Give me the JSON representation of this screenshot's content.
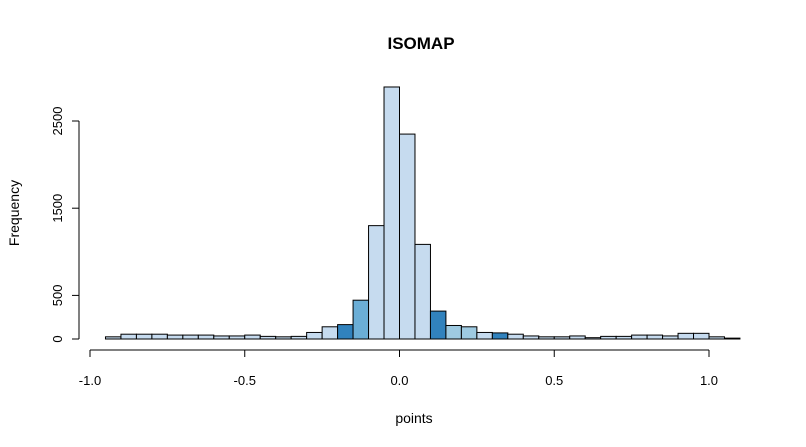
{
  "chart_data": {
    "type": "bar",
    "title": "ISOMAP",
    "xlabel": "points",
    "ylabel": "Frequency",
    "xlim": [
      -1.0,
      1.1
    ],
    "ylim": [
      0,
      2900
    ],
    "x_ticks": [
      -1.0,
      -0.5,
      0.0,
      0.5,
      1.0
    ],
    "x_tick_labels": [
      "-1.0",
      "-0.5",
      "0.0",
      "0.5",
      "1.0"
    ],
    "y_ticks": [
      0,
      500,
      1500,
      2500
    ],
    "y_tick_labels": [
      "0",
      "500",
      "1500",
      "2500"
    ],
    "grid": false,
    "bins": [
      {
        "x0": -0.95,
        "x1": -0.9,
        "count": 25,
        "color": "#c6dbef"
      },
      {
        "x0": -0.9,
        "x1": -0.85,
        "count": 55,
        "color": "#c6dbef"
      },
      {
        "x0": -0.85,
        "x1": -0.8,
        "count": 55,
        "color": "#c6dbef"
      },
      {
        "x0": -0.8,
        "x1": -0.75,
        "count": 55,
        "color": "#c6dbef"
      },
      {
        "x0": -0.75,
        "x1": -0.7,
        "count": 45,
        "color": "#c6dbef"
      },
      {
        "x0": -0.7,
        "x1": -0.65,
        "count": 45,
        "color": "#c6dbef"
      },
      {
        "x0": -0.65,
        "x1": -0.6,
        "count": 45,
        "color": "#c6dbef"
      },
      {
        "x0": -0.6,
        "x1": -0.55,
        "count": 35,
        "color": "#c6dbef"
      },
      {
        "x0": -0.55,
        "x1": -0.5,
        "count": 35,
        "color": "#c6dbef"
      },
      {
        "x0": -0.5,
        "x1": -0.45,
        "count": 45,
        "color": "#c6dbef"
      },
      {
        "x0": -0.45,
        "x1": -0.4,
        "count": 30,
        "color": "#c6dbef"
      },
      {
        "x0": -0.4,
        "x1": -0.35,
        "count": 25,
        "color": "#c6dbef"
      },
      {
        "x0": -0.35,
        "x1": -0.3,
        "count": 30,
        "color": "#c6dbef"
      },
      {
        "x0": -0.3,
        "x1": -0.25,
        "count": 75,
        "color": "#c6dbef"
      },
      {
        "x0": -0.25,
        "x1": -0.2,
        "count": 140,
        "color": "#c6dbef"
      },
      {
        "x0": -0.2,
        "x1": -0.15,
        "count": 165,
        "color": "#3182bd"
      },
      {
        "x0": -0.15,
        "x1": -0.1,
        "count": 445,
        "color": "#6baed6"
      },
      {
        "x0": -0.1,
        "x1": -0.05,
        "count": 1300,
        "color": "#c6dbef"
      },
      {
        "x0": -0.05,
        "x1": 0.0,
        "count": 2890,
        "color": "#c6dbef"
      },
      {
        "x0": 0.0,
        "x1": 0.05,
        "count": 2350,
        "color": "#c6dbef"
      },
      {
        "x0": 0.05,
        "x1": 0.1,
        "count": 1085,
        "color": "#c6dbef"
      },
      {
        "x0": 0.1,
        "x1": 0.15,
        "count": 320,
        "color": "#3182bd"
      },
      {
        "x0": 0.15,
        "x1": 0.2,
        "count": 155,
        "color": "#9ecae1"
      },
      {
        "x0": 0.2,
        "x1": 0.25,
        "count": 140,
        "color": "#9ecae1"
      },
      {
        "x0": 0.25,
        "x1": 0.3,
        "count": 75,
        "color": "#c6dbef"
      },
      {
        "x0": 0.3,
        "x1": 0.35,
        "count": 70,
        "color": "#3182bd"
      },
      {
        "x0": 0.35,
        "x1": 0.4,
        "count": 55,
        "color": "#c6dbef"
      },
      {
        "x0": 0.4,
        "x1": 0.45,
        "count": 35,
        "color": "#c6dbef"
      },
      {
        "x0": 0.45,
        "x1": 0.5,
        "count": 25,
        "color": "#c6dbef"
      },
      {
        "x0": 0.5,
        "x1": 0.55,
        "count": 25,
        "color": "#c6dbef"
      },
      {
        "x0": 0.55,
        "x1": 0.6,
        "count": 35,
        "color": "#c6dbef"
      },
      {
        "x0": 0.6,
        "x1": 0.65,
        "count": 15,
        "color": "#c6dbef"
      },
      {
        "x0": 0.65,
        "x1": 0.7,
        "count": 30,
        "color": "#c6dbef"
      },
      {
        "x0": 0.7,
        "x1": 0.75,
        "count": 30,
        "color": "#c6dbef"
      },
      {
        "x0": 0.75,
        "x1": 0.8,
        "count": 45,
        "color": "#c6dbef"
      },
      {
        "x0": 0.8,
        "x1": 0.85,
        "count": 45,
        "color": "#c6dbef"
      },
      {
        "x0": 0.85,
        "x1": 0.9,
        "count": 35,
        "color": "#c6dbef"
      },
      {
        "x0": 0.9,
        "x1": 0.95,
        "count": 65,
        "color": "#c6dbef"
      },
      {
        "x0": 0.95,
        "x1": 1.0,
        "count": 65,
        "color": "#c6dbef"
      },
      {
        "x0": 1.0,
        "x1": 1.05,
        "count": 25,
        "color": "#c6dbef"
      },
      {
        "x0": 1.05,
        "x1": 1.1,
        "count": 10,
        "color": "#c6dbef"
      }
    ]
  }
}
